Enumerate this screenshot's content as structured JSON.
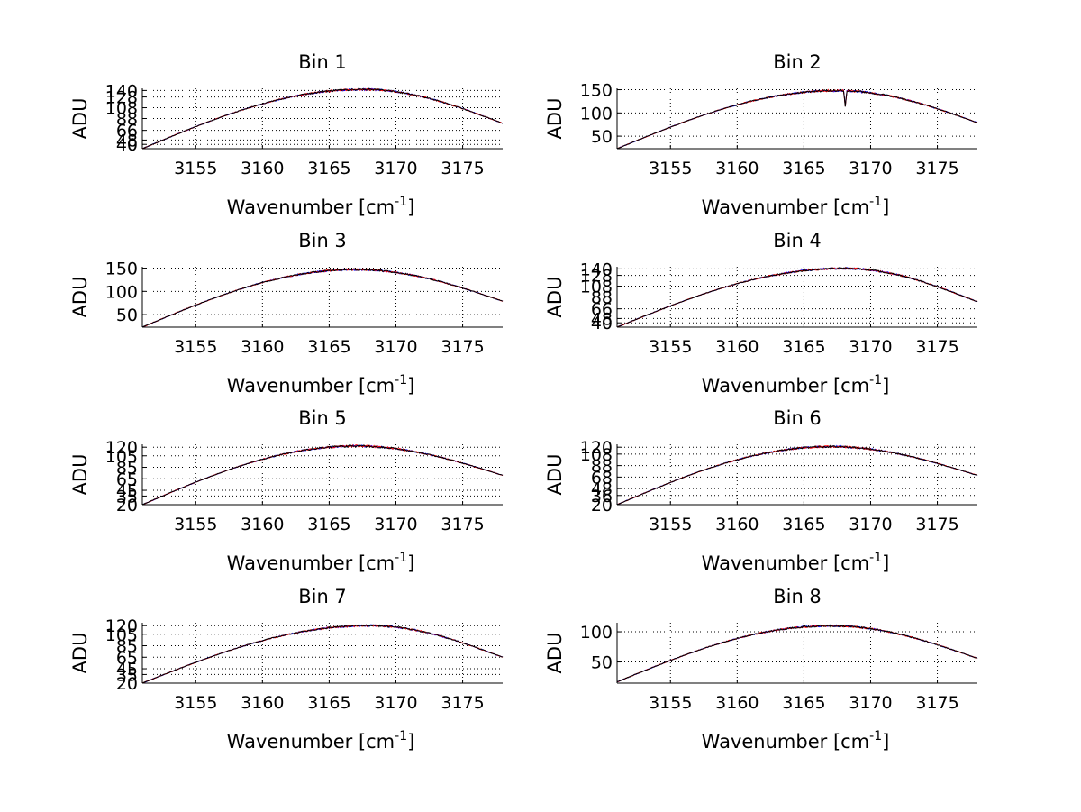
{
  "figure": {
    "background": "#ffffff",
    "colors": {
      "axes": "#000000",
      "grid": "#000000",
      "series": [
        "#0000ff",
        "#ff0000",
        "#000000"
      ]
    }
  },
  "chart_data": [
    {
      "type": "line",
      "title": "Bin 1",
      "xlabel_main": "Wavenumber [cm",
      "xlabel_sup": "-1",
      "xlabel_end": "]",
      "ylabel": "ADU",
      "xlim": [
        3151,
        3178
      ],
      "ylim": [
        32,
        144
      ],
      "grid": true,
      "xticks": [
        3155,
        3160,
        3165,
        3170,
        3175
      ],
      "yticks": [
        40,
        48,
        66,
        88,
        108,
        128,
        140
      ],
      "profile": {
        "start": 32,
        "peak": 142,
        "peak_x": 3167.5,
        "end": 79,
        "dip_x": null,
        "dip_depth": 0
      }
    },
    {
      "type": "line",
      "title": "Bin 2",
      "xlabel_main": "Wavenumber [cm",
      "xlabel_sup": "-1",
      "xlabel_end": "]",
      "ylabel": "ADU",
      "xlim": [
        3151,
        3178
      ],
      "ylim": [
        23,
        153
      ],
      "grid": true,
      "xticks": [
        3155,
        3160,
        3165,
        3170,
        3175
      ],
      "yticks": [
        50,
        100,
        150
      ],
      "profile": {
        "start": 23,
        "peak": 148,
        "peak_x": 3167.5,
        "end": 79,
        "dip_x": 3168.1,
        "dip_depth": 34
      }
    },
    {
      "type": "line",
      "title": "Bin 3",
      "xlabel_main": "Wavenumber [cm",
      "xlabel_sup": "-1",
      "xlabel_end": "]",
      "ylabel": "ADU",
      "xlim": [
        3151,
        3178
      ],
      "ylim": [
        23,
        153
      ],
      "grid": true,
      "xticks": [
        3155,
        3160,
        3165,
        3170,
        3175
      ],
      "yticks": [
        50,
        100,
        150
      ],
      "profile": {
        "start": 23,
        "peak": 147,
        "peak_x": 3167.0,
        "end": 79,
        "dip_x": null,
        "dip_depth": 0
      }
    },
    {
      "type": "line",
      "title": "Bin 4",
      "xlabel_main": "Wavenumber [cm",
      "xlabel_sup": "-1",
      "xlabel_end": "]",
      "ylabel": "ADU",
      "xlim": [
        3151,
        3178
      ],
      "ylim": [
        32,
        144
      ],
      "grid": true,
      "xticks": [
        3155,
        3160,
        3165,
        3170,
        3175
      ],
      "yticks": [
        40,
        48,
        66,
        88,
        108,
        128,
        140
      ],
      "profile": {
        "start": 32,
        "peak": 141,
        "peak_x": 3168.0,
        "end": 79,
        "dip_x": null,
        "dip_depth": 0
      }
    },
    {
      "type": "line",
      "title": "Bin 5",
      "xlabel_main": "Wavenumber [cm",
      "xlabel_sup": "-1",
      "xlabel_end": "]",
      "ylabel": "ADU",
      "xlim": [
        3151,
        3178
      ],
      "ylim": [
        20,
        125
      ],
      "grid": true,
      "xticks": [
        3155,
        3160,
        3165,
        3170,
        3175
      ],
      "yticks": [
        20,
        35,
        45,
        65,
        85,
        105,
        120
      ],
      "profile": {
        "start": 20,
        "peak": 122,
        "peak_x": 3167.0,
        "end": 71,
        "dip_x": null,
        "dip_depth": 0
      }
    },
    {
      "type": "line",
      "title": "Bin 6",
      "xlabel_main": "Wavenumber [cm",
      "xlabel_sup": "-1",
      "xlabel_end": "]",
      "ylabel": "ADU",
      "xlim": [
        3151,
        3178
      ],
      "ylim": [
        20,
        125
      ],
      "grid": true,
      "xticks": [
        3155,
        3160,
        3165,
        3170,
        3175
      ],
      "yticks": [
        20,
        36,
        48,
        68,
        88,
        108,
        120
      ],
      "profile": {
        "start": 20,
        "peak": 121,
        "peak_x": 3167.0,
        "end": 71,
        "dip_x": null,
        "dip_depth": 0
      }
    },
    {
      "type": "line",
      "title": "Bin 7",
      "xlabel_main": "Wavenumber [cm",
      "xlabel_sup": "-1",
      "xlabel_end": "]",
      "ylabel": "ADU",
      "xlim": [
        3151,
        3178
      ],
      "ylim": [
        20,
        125
      ],
      "grid": true,
      "xticks": [
        3155,
        3160,
        3165,
        3170,
        3175
      ],
      "yticks": [
        20,
        35,
        45,
        65,
        85,
        105,
        120
      ],
      "profile": {
        "start": 20,
        "peak": 120,
        "peak_x": 3168.0,
        "end": 65,
        "dip_x": null,
        "dip_depth": 0
      }
    },
    {
      "type": "line",
      "title": "Bin 8",
      "xlabel_main": "Wavenumber [cm",
      "xlabel_sup": "-1",
      "xlabel_end": "]",
      "ylabel": "ADU",
      "xlim": [
        3151,
        3178
      ],
      "ylim": [
        15,
        115
      ],
      "grid": true,
      "xticks": [
        3155,
        3160,
        3165,
        3170,
        3175
      ],
      "yticks": [
        50,
        100
      ],
      "profile": {
        "start": 17,
        "peak": 110,
        "peak_x": 3167.0,
        "end": 56,
        "dip_x": null,
        "dip_depth": 0
      }
    }
  ]
}
